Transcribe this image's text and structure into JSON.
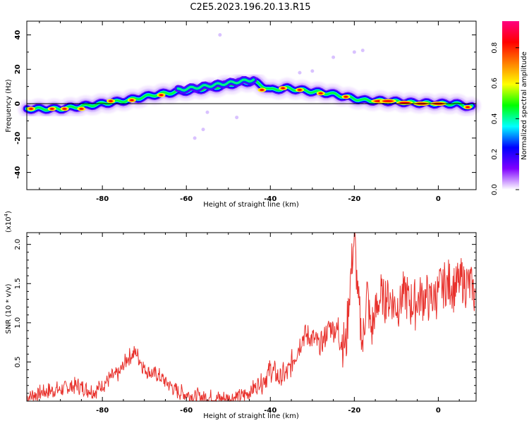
{
  "title": "C2E5.2023.196.20.13.R15",
  "chart_data": [
    {
      "type": "heatmap",
      "xlabel": "Height of straight line (km)",
      "ylabel": "Frequency (Hz)",
      "xlim": [
        -98,
        9
      ],
      "ylim": [
        -50,
        48
      ],
      "x_ticks": [
        "-80",
        "-60",
        "-40",
        "-20",
        "0"
      ],
      "y_ticks": [
        "40",
        "20",
        "0",
        "-20",
        "-40"
      ],
      "grid": false,
      "ridge": {
        "x": [
          -98,
          -90,
          -80,
          -74,
          -68,
          -62,
          -58,
          -52,
          -48,
          -44,
          -40,
          -36,
          -30,
          -26,
          -22,
          -18,
          -12,
          -6,
          0,
          4,
          8
        ],
        "y": [
          -3,
          -3,
          0,
          2,
          5,
          7,
          8,
          10,
          12,
          13,
          8,
          9,
          7,
          6,
          4,
          2,
          1.5,
          0.5,
          0,
          0,
          -2
        ]
      },
      "colorbar": {
        "label": "Normalized spectral amplitude",
        "ticks": [
          "0.0",
          "0.2",
          "0.4",
          "0.6",
          "0.8"
        ],
        "colormap": [
          "#ffffff",
          "#7f00ff",
          "#0000ff",
          "#00ffff",
          "#00ff00",
          "#ffff00",
          "#ff8000",
          "#ff0000",
          "#ff0080"
        ]
      }
    },
    {
      "type": "line",
      "xlabel": "Height of straight line (km)",
      "ylabel": "SNR (10 * v/v)",
      "y_scale_label": "(x10",
      "y_scale_exp": "4",
      "y_scale_close": ")",
      "xlim": [
        -98,
        9
      ],
      "ylim": [
        0,
        2.15
      ],
      "x_ticks": [
        "-80",
        "-60",
        "-40",
        "-20",
        "0"
      ],
      "y_ticks": [
        "0.5",
        "1.0",
        "1.5",
        "2.0"
      ],
      "series": [
        {
          "color": "#e8312c",
          "x": [
            -98,
            -94,
            -90,
            -86,
            -82,
            -78,
            -76,
            -74,
            -72,
            -70,
            -68,
            -66,
            -62,
            -58,
            -54,
            -50,
            -46,
            -42,
            -40,
            -38,
            -36,
            -34,
            -32,
            -30,
            -28,
            -26,
            -24,
            -22,
            -21,
            -20,
            -19,
            -18,
            -17,
            -16,
            -14,
            -12,
            -10,
            -8,
            -6,
            -4,
            -2,
            0,
            2,
            4,
            6,
            8,
            9
          ],
          "y": [
            0.05,
            0.12,
            0.15,
            0.2,
            0.12,
            0.3,
            0.35,
            0.55,
            0.62,
            0.42,
            0.35,
            0.3,
            0.12,
            0.06,
            0.04,
            0.03,
            0.08,
            0.25,
            0.4,
            0.3,
            0.35,
            0.6,
            0.85,
            0.8,
            0.7,
            0.95,
            0.9,
            0.7,
            1.5,
            2.1,
            1.2,
            0.7,
            1.4,
            0.9,
            1.3,
            1.35,
            1.2,
            1.4,
            1.2,
            1.35,
            1.3,
            1.4,
            1.5,
            1.45,
            1.55,
            1.45,
            1.35
          ]
        }
      ]
    }
  ]
}
